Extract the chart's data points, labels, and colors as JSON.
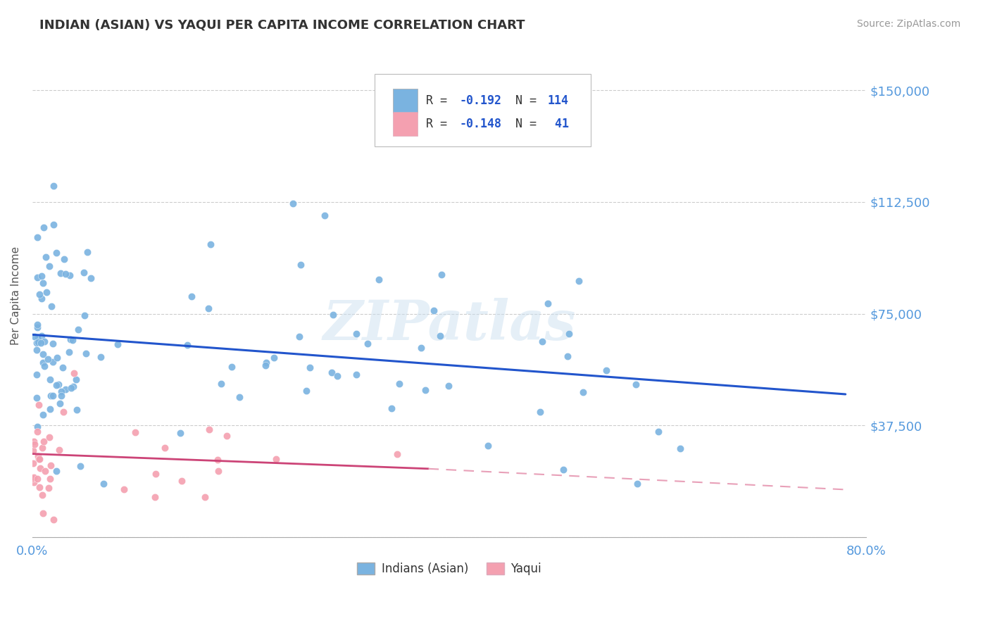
{
  "title": "INDIAN (ASIAN) VS YAQUI PER CAPITA INCOME CORRELATION CHART",
  "source_text": "Source: ZipAtlas.com",
  "ylabel": "Per Capita Income",
  "xlim": [
    0.0,
    0.8
  ],
  "ylim": [
    0,
    162000
  ],
  "ytick_values": [
    0,
    37500,
    75000,
    112500,
    150000
  ],
  "ytick_labels": [
    "",
    "$37,500",
    "$75,000",
    "$112,500",
    "$150,000"
  ],
  "grid_color": "#cccccc",
  "background_color": "#ffffff",
  "indian_color": "#7ab3e0",
  "yaqui_color": "#f4a0b0",
  "indian_line_color": "#2255cc",
  "yaqui_line_solid_color": "#cc4477",
  "yaqui_line_dash_color": "#e8a0b8",
  "legend_R_indian": "-0.192",
  "legend_N_indian": "114",
  "legend_R_yaqui": "-0.148",
  "legend_N_yaqui": "41",
  "watermark": "ZIPatlas",
  "title_color": "#333333",
  "axis_label_color": "#5599dd",
  "indian_trend": [
    0.0,
    0.78,
    68000,
    48000
  ],
  "yaqui_trend_solid": [
    0.0,
    0.38,
    28000,
    23000
  ],
  "yaqui_trend_dash": [
    0.38,
    0.78,
    23000,
    16000
  ]
}
